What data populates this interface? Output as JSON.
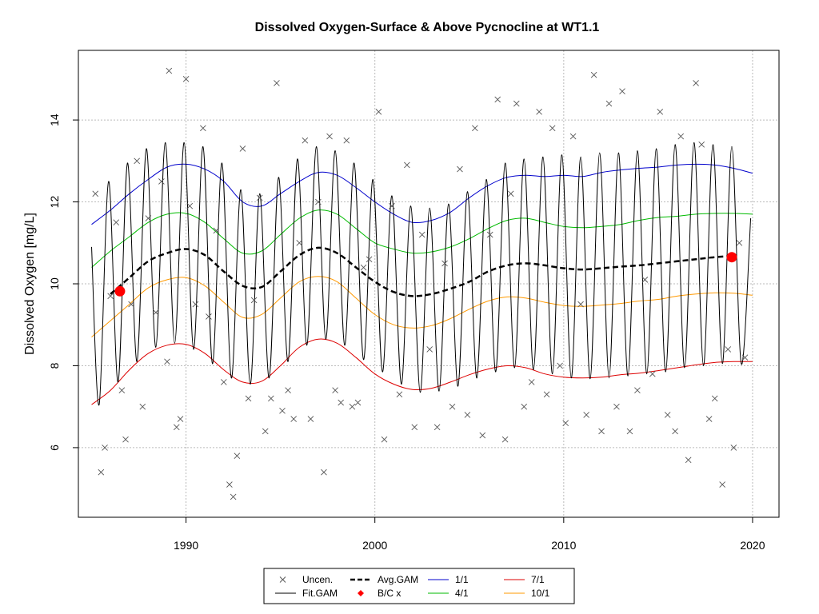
{
  "chart_data": {
    "type": "line",
    "title": "Dissolved Oxygen-Surface & Above Pycnocline at WT1.1",
    "xlabel": "",
    "ylabel": "Dissolved Oxygen [mg/L]",
    "xlim": [
      1984.3,
      2021.4
    ],
    "ylim": [
      4.3,
      15.7
    ],
    "x_ticks": [
      1990,
      2000,
      2010,
      2020
    ],
    "x_tick_labels": [
      "1990",
      "2000",
      "2010",
      "2020"
    ],
    "y_ticks": [
      6,
      8,
      10,
      12,
      14
    ],
    "y_tick_labels": [
      "6",
      "8",
      "10",
      "12",
      "14"
    ],
    "grid": true,
    "legend_position": "bottom",
    "colors": {
      "points": "#555555",
      "fit": "#000000",
      "avg": "#000000",
      "q1": "#0000cc",
      "q4": "#00bb00",
      "q7": "#dd0000",
      "q10": "#ff9900",
      "bc": "#ff0000"
    },
    "legend": [
      {
        "label": "Uncen.",
        "key": "points"
      },
      {
        "label": "Avg.GAM",
        "key": "avg"
      },
      {
        "label": "1/1",
        "key": "q1"
      },
      {
        "label": "7/1",
        "key": "q7"
      },
      {
        "label": "Fit.GAM",
        "key": "fit"
      },
      {
        "label": "B/C x",
        "key": "bc"
      },
      {
        "label": "4/1",
        "key": "q4"
      },
      {
        "label": "10/1",
        "key": "q10"
      }
    ],
    "series": [
      {
        "name": "1/1",
        "x": [
          1985.0,
          1986.0,
          1987.0,
          1988.0,
          1989.0,
          1990.0,
          1991.0,
          1992.0,
          1993.0,
          1994.0,
          1995.0,
          1996.0,
          1997.0,
          1998.0,
          1999.0,
          2000.0,
          2001.0,
          2002.0,
          2003.0,
          2004.0,
          2005.0,
          2006.0,
          2007.0,
          2008.0,
          2009.0,
          2010.0,
          2011.0,
          2012.0,
          2013.0,
          2014.0,
          2015.0,
          2016.0,
          2017.0,
          2018.0,
          2019.0,
          2020.0
        ],
        "y": [
          11.45,
          11.8,
          12.2,
          12.55,
          12.85,
          12.92,
          12.8,
          12.5,
          12.0,
          11.9,
          12.2,
          12.5,
          12.72,
          12.65,
          12.35,
          12.0,
          11.7,
          11.5,
          11.55,
          11.75,
          12.1,
          12.4,
          12.6,
          12.65,
          12.62,
          12.65,
          12.62,
          12.72,
          12.78,
          12.82,
          12.85,
          12.9,
          12.92,
          12.9,
          12.82,
          12.7
        ]
      },
      {
        "name": "4/1",
        "x": [
          1985.0,
          1986.0,
          1987.0,
          1988.0,
          1989.0,
          1990.0,
          1991.0,
          1992.0,
          1993.0,
          1994.0,
          1995.0,
          1996.0,
          1997.0,
          1998.0,
          1999.0,
          2000.0,
          2001.0,
          2002.0,
          2003.0,
          2004.0,
          2005.0,
          2006.0,
          2007.0,
          2008.0,
          2009.0,
          2010.0,
          2011.0,
          2012.0,
          2013.0,
          2014.0,
          2015.0,
          2016.0,
          2017.0,
          2018.0,
          2019.0,
          2020.0
        ],
        "y": [
          10.4,
          10.8,
          11.15,
          11.5,
          11.7,
          11.72,
          11.5,
          11.1,
          10.75,
          10.8,
          11.2,
          11.6,
          11.8,
          11.7,
          11.35,
          11.0,
          10.85,
          10.75,
          10.78,
          10.9,
          11.1,
          11.35,
          11.55,
          11.6,
          11.5,
          11.4,
          11.37,
          11.4,
          11.45,
          11.55,
          11.62,
          11.65,
          11.7,
          11.72,
          11.72,
          11.7
        ]
      },
      {
        "name": "7/1",
        "x": [
          1985.0,
          1986.0,
          1987.0,
          1988.0,
          1989.0,
          1990.0,
          1991.0,
          1992.0,
          1993.0,
          1994.0,
          1995.0,
          1996.0,
          1997.0,
          1998.0,
          1999.0,
          2000.0,
          2001.0,
          2002.0,
          2003.0,
          2004.0,
          2005.0,
          2006.0,
          2007.0,
          2008.0,
          2009.0,
          2010.0,
          2011.0,
          2012.0,
          2013.0,
          2014.0,
          2015.0,
          2016.0,
          2017.0,
          2018.0,
          2019.0,
          2020.0
        ],
        "y": [
          7.05,
          7.4,
          7.9,
          8.3,
          8.5,
          8.52,
          8.3,
          7.9,
          7.6,
          7.62,
          8.0,
          8.45,
          8.65,
          8.55,
          8.2,
          7.8,
          7.55,
          7.42,
          7.45,
          7.6,
          7.78,
          7.92,
          8.0,
          7.95,
          7.8,
          7.72,
          7.7,
          7.72,
          7.78,
          7.82,
          7.88,
          7.95,
          8.02,
          8.08,
          8.1,
          8.1
        ]
      },
      {
        "name": "10/1",
        "x": [
          1985.0,
          1986.0,
          1987.0,
          1988.0,
          1989.0,
          1990.0,
          1991.0,
          1992.0,
          1993.0,
          1994.0,
          1995.0,
          1996.0,
          1997.0,
          1998.0,
          1999.0,
          2000.0,
          2001.0,
          2002.0,
          2003.0,
          2004.0,
          2005.0,
          2006.0,
          2007.0,
          2008.0,
          2009.0,
          2010.0,
          2011.0,
          2012.0,
          2013.0,
          2014.0,
          2015.0,
          2016.0,
          2017.0,
          2018.0,
          2019.0,
          2020.0
        ],
        "y": [
          8.7,
          9.1,
          9.5,
          9.9,
          10.1,
          10.15,
          9.95,
          9.55,
          9.18,
          9.25,
          9.65,
          10.05,
          10.18,
          10.05,
          9.65,
          9.25,
          9.0,
          8.92,
          8.98,
          9.15,
          9.38,
          9.58,
          9.68,
          9.65,
          9.55,
          9.47,
          9.45,
          9.48,
          9.52,
          9.58,
          9.62,
          9.7,
          9.75,
          9.78,
          9.77,
          9.72
        ]
      },
      {
        "name": "Avg.GAM",
        "x": [
          1986.0,
          1987.0,
          1988.0,
          1989.0,
          1990.0,
          1991.0,
          1992.0,
          1993.0,
          1994.0,
          1995.0,
          1996.0,
          1997.0,
          1998.0,
          1999.0,
          2000.0,
          2001.0,
          2002.0,
          2003.0,
          2004.0,
          2005.0,
          2006.0,
          2007.0,
          2008.0,
          2009.0,
          2010.0,
          2011.0,
          2012.0,
          2013.0,
          2014.0,
          2015.0,
          2016.0,
          2017.0,
          2018.0,
          2019.0
        ],
        "y": [
          9.75,
          10.15,
          10.55,
          10.75,
          10.85,
          10.7,
          10.3,
          9.95,
          9.92,
          10.3,
          10.7,
          10.88,
          10.75,
          10.4,
          10.05,
          9.8,
          9.7,
          9.75,
          9.88,
          10.05,
          10.3,
          10.45,
          10.5,
          10.45,
          10.38,
          10.35,
          10.38,
          10.42,
          10.45,
          10.5,
          10.55,
          10.6,
          10.65,
          10.68
        ]
      },
      {
        "name": "Fit.GAM",
        "x": [
          1985.0,
          1985.4,
          1985.9,
          1986.4,
          1986.9,
          1987.4,
          1987.9,
          1988.4,
          1988.9,
          1989.4,
          1989.9,
          1990.4,
          1990.9,
          1991.4,
          1991.9,
          1992.4,
          1992.9,
          1993.4,
          1993.9,
          1994.4,
          1994.9,
          1995.4,
          1995.9,
          1996.4,
          1996.9,
          1997.4,
          1997.9,
          1998.4,
          1998.9,
          1999.4,
          1999.9,
          2000.4,
          2000.9,
          2001.4,
          2001.9,
          2002.4,
          2002.9,
          2003.4,
          2003.9,
          2004.4,
          2004.9,
          2005.4,
          2005.9,
          2006.4,
          2006.9,
          2007.4,
          2007.9,
          2008.4,
          2008.9,
          2009.4,
          2009.9,
          2010.4,
          2010.9,
          2011.4,
          2011.9,
          2012.4,
          2012.9,
          2013.4,
          2013.9,
          2014.4,
          2014.9,
          2015.4,
          2015.9,
          2016.4,
          2016.9,
          2017.4,
          2017.9,
          2018.4,
          2018.9,
          2019.4,
          2019.9
        ],
        "y": [
          10.9,
          7.05,
          12.5,
          7.6,
          12.95,
          8.1,
          13.3,
          8.45,
          13.45,
          8.55,
          13.45,
          8.4,
          13.35,
          8.05,
          12.95,
          7.7,
          12.3,
          7.55,
          12.2,
          7.7,
          12.6,
          8.1,
          13.05,
          8.5,
          13.35,
          8.65,
          13.25,
          8.5,
          12.95,
          8.15,
          12.55,
          7.85,
          12.15,
          7.55,
          11.9,
          7.35,
          11.85,
          7.38,
          11.95,
          7.5,
          12.25,
          7.7,
          12.55,
          7.85,
          12.95,
          7.95,
          13.05,
          7.9,
          13.1,
          7.8,
          13.15,
          7.7,
          13.1,
          7.68,
          13.2,
          7.7,
          13.2,
          7.75,
          13.25,
          7.8,
          13.3,
          7.85,
          13.4,
          7.95,
          13.45,
          8.0,
          13.4,
          8.05,
          13.35,
          8.05,
          11.6
        ]
      },
      {
        "name": "Uncen.",
        "x": [
          1985.2,
          1985.5,
          1985.7,
          1986.0,
          1986.3,
          1986.6,
          1986.8,
          1987.1,
          1987.4,
          1987.7,
          1988.0,
          1988.4,
          1988.7,
          1989.0,
          1989.1,
          1989.5,
          1989.7,
          1990.0,
          1990.2,
          1990.5,
          1990.9,
          1991.2,
          1991.6,
          1992.0,
          1992.3,
          1992.5,
          1992.7,
          1993.0,
          1993.3,
          1993.6,
          1993.9,
          1994.2,
          1994.5,
          1994.8,
          1995.1,
          1995.4,
          1995.7,
          1996.0,
          1996.3,
          1996.6,
          1997.0,
          1997.3,
          1997.6,
          1997.9,
          1998.2,
          1998.5,
          1998.8,
          1999.1,
          1999.4,
          1999.7,
          2000.2,
          2000.5,
          2000.9,
          2001.3,
          2001.7,
          2002.1,
          2002.5,
          2002.9,
          2003.3,
          2003.7,
          2004.1,
          2004.5,
          2004.9,
          2005.3,
          2005.7,
          2006.1,
          2006.5,
          2006.9,
          2007.2,
          2007.5,
          2007.9,
          2008.3,
          2008.7,
          2009.1,
          2009.4,
          2009.8,
          2010.1,
          2010.5,
          2010.9,
          2011.2,
          2011.6,
          2012.0,
          2012.4,
          2012.8,
          2013.1,
          2013.5,
          2013.9,
          2014.3,
          2014.7,
          2015.1,
          2015.5,
          2015.9,
          2016.2,
          2016.6,
          2017.0,
          2017.3,
          2017.7,
          2018.0,
          2018.4,
          2018.7,
          2019.0,
          2019.3,
          2019.6
        ],
        "y": [
          12.2,
          5.4,
          6.0,
          9.7,
          11.5,
          7.4,
          6.2,
          9.5,
          13.0,
          7.0,
          11.6,
          9.3,
          12.5,
          8.1,
          15.2,
          6.5,
          6.7,
          15.0,
          11.9,
          9.5,
          13.8,
          9.2,
          11.3,
          7.6,
          5.1,
          4.8,
          5.8,
          13.3,
          7.2,
          9.6,
          12.1,
          6.4,
          7.2,
          14.9,
          6.9,
          7.4,
          6.7,
          11.0,
          13.5,
          6.7,
          12.0,
          5.4,
          13.6,
          7.4,
          7.1,
          13.5,
          7.0,
          7.1,
          10.4,
          10.6,
          14.2,
          6.2,
          11.9,
          7.3,
          12.9,
          6.5,
          11.2,
          8.4,
          6.5,
          10.5,
          7.0,
          12.8,
          6.8,
          13.8,
          6.3,
          11.2,
          14.5,
          6.2,
          12.2,
          14.4,
          7.0,
          7.6,
          14.2,
          7.3,
          13.8,
          8.0,
          6.6,
          13.6,
          9.5,
          6.8,
          15.1,
          6.4,
          14.4,
          7.0,
          14.7,
          6.4,
          7.4,
          10.1,
          7.8,
          14.2,
          6.8,
          6.4,
          13.6,
          5.7,
          14.9,
          13.4,
          6.7,
          7.2,
          5.1,
          8.4,
          6.0,
          11.0,
          8.2
        ]
      },
      {
        "name": "B/C x",
        "x": [
          1986.5,
          2018.9
        ],
        "y": [
          9.82,
          10.65
        ]
      }
    ]
  }
}
